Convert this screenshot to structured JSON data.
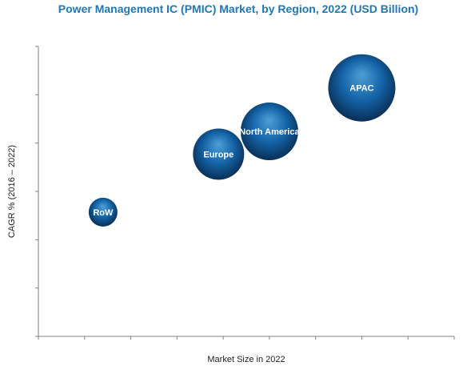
{
  "chart_data": {
    "type": "scatter",
    "subtype": "bubble",
    "title": "Power Management IC (PMIC) Market, by Region, 2022 (USD Billion)",
    "xlabel": "Market Size in 2022",
    "ylabel": "CAGR % (2016 – 2022)",
    "tick_labels_shown": false,
    "grid": false,
    "legend": "none",
    "series": [
      {
        "label": "RoW",
        "x": 1.4,
        "y": 2.0,
        "size": 0.9
      },
      {
        "label": "Europe",
        "x": 3.9,
        "y": 3.4,
        "size": 1.6
      },
      {
        "label": "North America",
        "x": 5.0,
        "y": 3.95,
        "size": 1.8
      },
      {
        "label": "APAC",
        "x": 7.0,
        "y": 5.0,
        "size": 2.1
      }
    ],
    "xlim": [
      0,
      9
    ],
    "ylim": [
      -1,
      6
    ],
    "colors": {
      "title": "#1f77b4",
      "bubble_light": "#4f9fd6",
      "bubble_mid": "#1464a8",
      "bubble_dark": "#0a2f57",
      "axis": "#808080"
    }
  }
}
